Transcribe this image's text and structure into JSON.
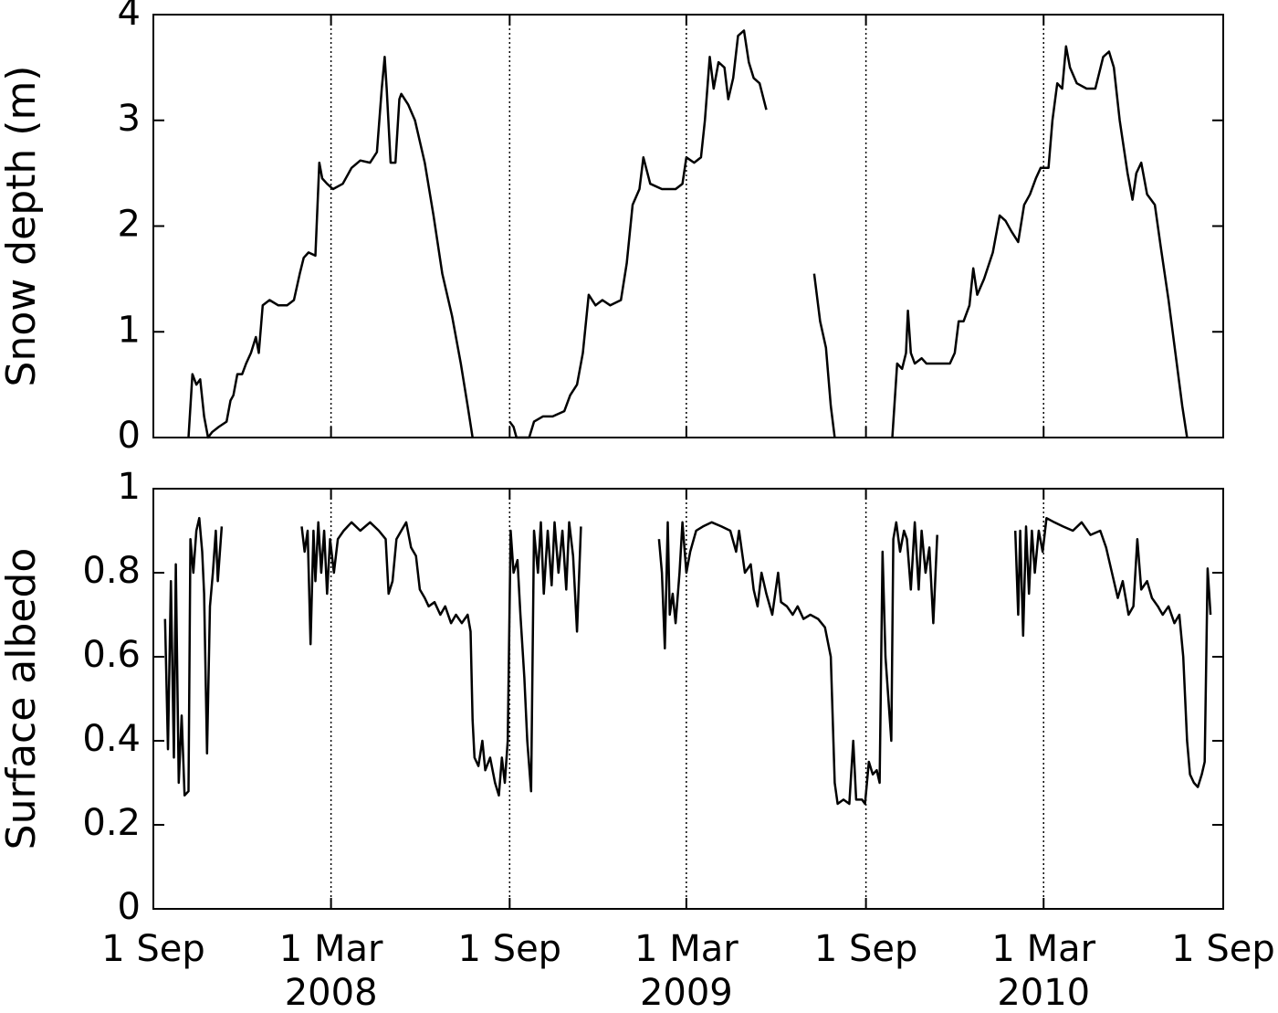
{
  "chart_data": [
    {
      "type": "line",
      "ylabel": "Snow depth (m)",
      "xlim": [
        0,
        1096
      ],
      "ylim": [
        0,
        4
      ],
      "yticks": [
        0,
        1,
        2,
        3,
        4
      ],
      "xgrid": true,
      "x": [
        36,
        40,
        44,
        48,
        52,
        56,
        60,
        67,
        75,
        79,
        82,
        86,
        91,
        95,
        100,
        105,
        108,
        112,
        119,
        128,
        137,
        144,
        150,
        154,
        159,
        166,
        170,
        173,
        178,
        184,
        194,
        203,
        212,
        222,
        229,
        234,
        237,
        239,
        243,
        248,
        252,
        254,
        261,
        268,
        278,
        287,
        296,
        306,
        315,
        322,
        327,
        346,
        365,
        369,
        372,
        385,
        390,
        399,
        409,
        421,
        427,
        434,
        440,
        446,
        453,
        460,
        468,
        479,
        485,
        491,
        498,
        502,
        509,
        521,
        535,
        542,
        546,
        554,
        561,
        565,
        570,
        574,
        579,
        585,
        589,
        594,
        599,
        605,
        610,
        615,
        621,
        628,
        650,
        677,
        683,
        689,
        694,
        698,
        730,
        757,
        762,
        767,
        771,
        773,
        776,
        780,
        787,
        792,
        816,
        821,
        825,
        830,
        836,
        840,
        844,
        851,
        860,
        867,
        873,
        879,
        886,
        892,
        898,
        904,
        909,
        917,
        921,
        926,
        931,
        935,
        939,
        946,
        956,
        965,
        973,
        979,
        984,
        990,
        998,
        1003,
        1007,
        1012,
        1018,
        1026,
        1032,
        1040,
        1047,
        1054,
        1059
      ],
      "series": [
        {
          "name": "Snow depth",
          "color": "#000000",
          "values": [
            0,
            0.6,
            0.5,
            0.55,
            0.2,
            0,
            0.05,
            0.1,
            0.15,
            0.35,
            0.4,
            0.6,
            0.6,
            0.7,
            0.8,
            0.95,
            0.8,
            1.25,
            1.3,
            1.25,
            1.25,
            1.3,
            1.55,
            1.7,
            1.75,
            1.72,
            2.6,
            2.45,
            2.4,
            2.35,
            2.4,
            2.55,
            2.62,
            2.6,
            2.7,
            3.3,
            3.6,
            3.3,
            2.6,
            2.6,
            3.2,
            3.25,
            3.15,
            3.0,
            2.6,
            2.1,
            1.55,
            1.15,
            0.7,
            0.3,
            0,
            null,
            0.15,
            0.1,
            0,
            0,
            0.15,
            0.2,
            0.2,
            0.25,
            0.4,
            0.5,
            0.8,
            1.35,
            1.25,
            1.3,
            1.25,
            1.3,
            1.65,
            2.2,
            2.35,
            2.65,
            2.4,
            2.35,
            2.35,
            2.4,
            2.65,
            2.6,
            2.65,
            3.0,
            3.6,
            3.3,
            3.55,
            3.5,
            3.2,
            3.4,
            3.8,
            3.85,
            3.55,
            3.4,
            3.35,
            3.1,
            null,
            1.55,
            1.1,
            0.85,
            0.3,
            0,
            null,
            0,
            0.7,
            0.65,
            0.8,
            1.2,
            0.8,
            0.7,
            0.75,
            0.7,
            0.7,
            0.8,
            1.1,
            1.1,
            1.25,
            1.6,
            1.35,
            1.5,
            1.75,
            2.1,
            2.05,
            1.95,
            1.85,
            2.2,
            2.3,
            2.45,
            2.55,
            2.55,
            3.0,
            3.35,
            3.3,
            3.7,
            3.5,
            3.35,
            3.3,
            3.3,
            3.6,
            3.65,
            3.5,
            3.0,
            2.5,
            2.25,
            2.5,
            2.6,
            2.3,
            2.2,
            1.8,
            1.3,
            0.8,
            0.3,
            0
          ]
        }
      ]
    },
    {
      "type": "line",
      "ylabel": "Surface albedo",
      "xlim": [
        0,
        1096
      ],
      "ylim": [
        0,
        1
      ],
      "yticks": [
        0,
        0.2,
        0.4,
        0.6,
        0.8,
        1
      ],
      "xgrid": true,
      "xticks": [
        {
          "value": 0,
          "label": "1 Sep"
        },
        {
          "value": 182,
          "label": "1 Mar"
        },
        {
          "value": 365,
          "label": "1 Sep"
        },
        {
          "value": 546,
          "label": "1 Mar"
        },
        {
          "value": 730,
          "label": "1 Sep"
        },
        {
          "value": 912,
          "label": "1 Mar"
        },
        {
          "value": 1096,
          "label": "1 Sep"
        }
      ],
      "xtick_years": [
        {
          "value": 182,
          "label": "2008"
        },
        {
          "value": 546,
          "label": "2009"
        },
        {
          "value": 912,
          "label": "2010"
        }
      ],
      "x": [
        12,
        15,
        18,
        21,
        23,
        26,
        29,
        32,
        36,
        38,
        41,
        44,
        47,
        50,
        52,
        55,
        58,
        61,
        64,
        66,
        70,
        110,
        152,
        155,
        158,
        161,
        164,
        166,
        169,
        172,
        175,
        178,
        181,
        185,
        189,
        195,
        203,
        212,
        222,
        231,
        238,
        241,
        245,
        249,
        254,
        259,
        264,
        269,
        273,
        278,
        282,
        288,
        294,
        299,
        305,
        310,
        316,
        322,
        325,
        327,
        329,
        333,
        337,
        340,
        345,
        350,
        354,
        357,
        360,
        363,
        366,
        369,
        373,
        376,
        380,
        383,
        387,
        390,
        394,
        397,
        400,
        404,
        408,
        411,
        415,
        419,
        423,
        426,
        430,
        434,
        438,
        480,
        518,
        521,
        524,
        527,
        529,
        532,
        535,
        539,
        542,
        546,
        550,
        556,
        563,
        572,
        582,
        591,
        597,
        600,
        606,
        612,
        615,
        619,
        623,
        628,
        634,
        640,
        643,
        649,
        655,
        660,
        666,
        673,
        681,
        688,
        694,
        698,
        701,
        707,
        713,
        717,
        720,
        726,
        729,
        733,
        737,
        741,
        744,
        747,
        750,
        753,
        756,
        758,
        761,
        765,
        769,
        772,
        776,
        780,
        784,
        787,
        791,
        795,
        799,
        803,
        845,
        883,
        886,
        888,
        891,
        894,
        897,
        900,
        903,
        907,
        911,
        915,
        923,
        932,
        942,
        951,
        960,
        970,
        976,
        982,
        988,
        993,
        999,
        1004,
        1008,
        1012,
        1018,
        1023,
        1029,
        1034,
        1040,
        1046,
        1051,
        1055,
        1059,
        1062,
        1066,
        1070,
        1074,
        1077,
        1080,
        1083
      ],
      "series": [
        {
          "name": "Surface albedo",
          "color": "#000000",
          "values": [
            0.69,
            0.38,
            0.78,
            0.36,
            0.82,
            0.3,
            0.46,
            0.27,
            0.28,
            0.88,
            0.8,
            0.9,
            0.93,
            0.85,
            0.75,
            0.37,
            0.72,
            0.8,
            0.9,
            0.78,
            0.91,
            null,
            0.91,
            0.85,
            0.9,
            0.63,
            0.9,
            0.78,
            0.92,
            0.8,
            0.9,
            0.75,
            0.88,
            0.8,
            0.88,
            0.9,
            0.92,
            0.9,
            0.92,
            0.9,
            0.88,
            0.75,
            0.78,
            0.88,
            0.9,
            0.92,
            0.86,
            0.84,
            0.76,
            0.74,
            0.72,
            0.73,
            0.7,
            0.72,
            0.68,
            0.7,
            0.68,
            0.7,
            0.66,
            0.45,
            0.36,
            0.34,
            0.4,
            0.33,
            0.36,
            0.3,
            0.27,
            0.36,
            0.3,
            0.4,
            0.9,
            0.8,
            0.83,
            0.7,
            0.55,
            0.4,
            0.28,
            0.9,
            0.8,
            0.92,
            0.75,
            0.9,
            0.77,
            0.92,
            0.8,
            0.9,
            0.76,
            0.92,
            0.84,
            0.66,
            0.91,
            null,
            0.88,
            0.8,
            0.62,
            0.92,
            0.7,
            0.75,
            0.68,
            0.8,
            0.92,
            0.8,
            0.85,
            0.9,
            0.91,
            0.92,
            0.91,
            0.9,
            0.85,
            0.9,
            0.8,
            0.82,
            0.76,
            0.72,
            0.8,
            0.75,
            0.7,
            0.8,
            0.73,
            0.72,
            0.7,
            0.72,
            0.69,
            0.7,
            0.69,
            0.67,
            0.6,
            0.3,
            0.25,
            0.26,
            0.25,
            0.4,
            0.26,
            0.26,
            0.25,
            0.35,
            0.32,
            0.33,
            0.3,
            0.85,
            0.6,
            0.5,
            0.4,
            0.88,
            0.92,
            0.85,
            0.9,
            0.88,
            0.76,
            0.92,
            0.76,
            0.9,
            0.8,
            0.86,
            0.68,
            0.89,
            null,
            0.9,
            0.7,
            0.9,
            0.65,
            0.91,
            0.75,
            0.9,
            0.8,
            0.9,
            0.85,
            0.93,
            0.92,
            0.91,
            0.9,
            0.92,
            0.89,
            0.9,
            0.86,
            0.8,
            0.74,
            0.78,
            0.7,
            0.72,
            0.88,
            0.76,
            0.78,
            0.74,
            0.72,
            0.7,
            0.72,
            0.68,
            0.7,
            0.6,
            0.4,
            0.32,
            0.3,
            0.29,
            0.32,
            0.35,
            0.81,
            0.7
          ]
        }
      ]
    }
  ]
}
